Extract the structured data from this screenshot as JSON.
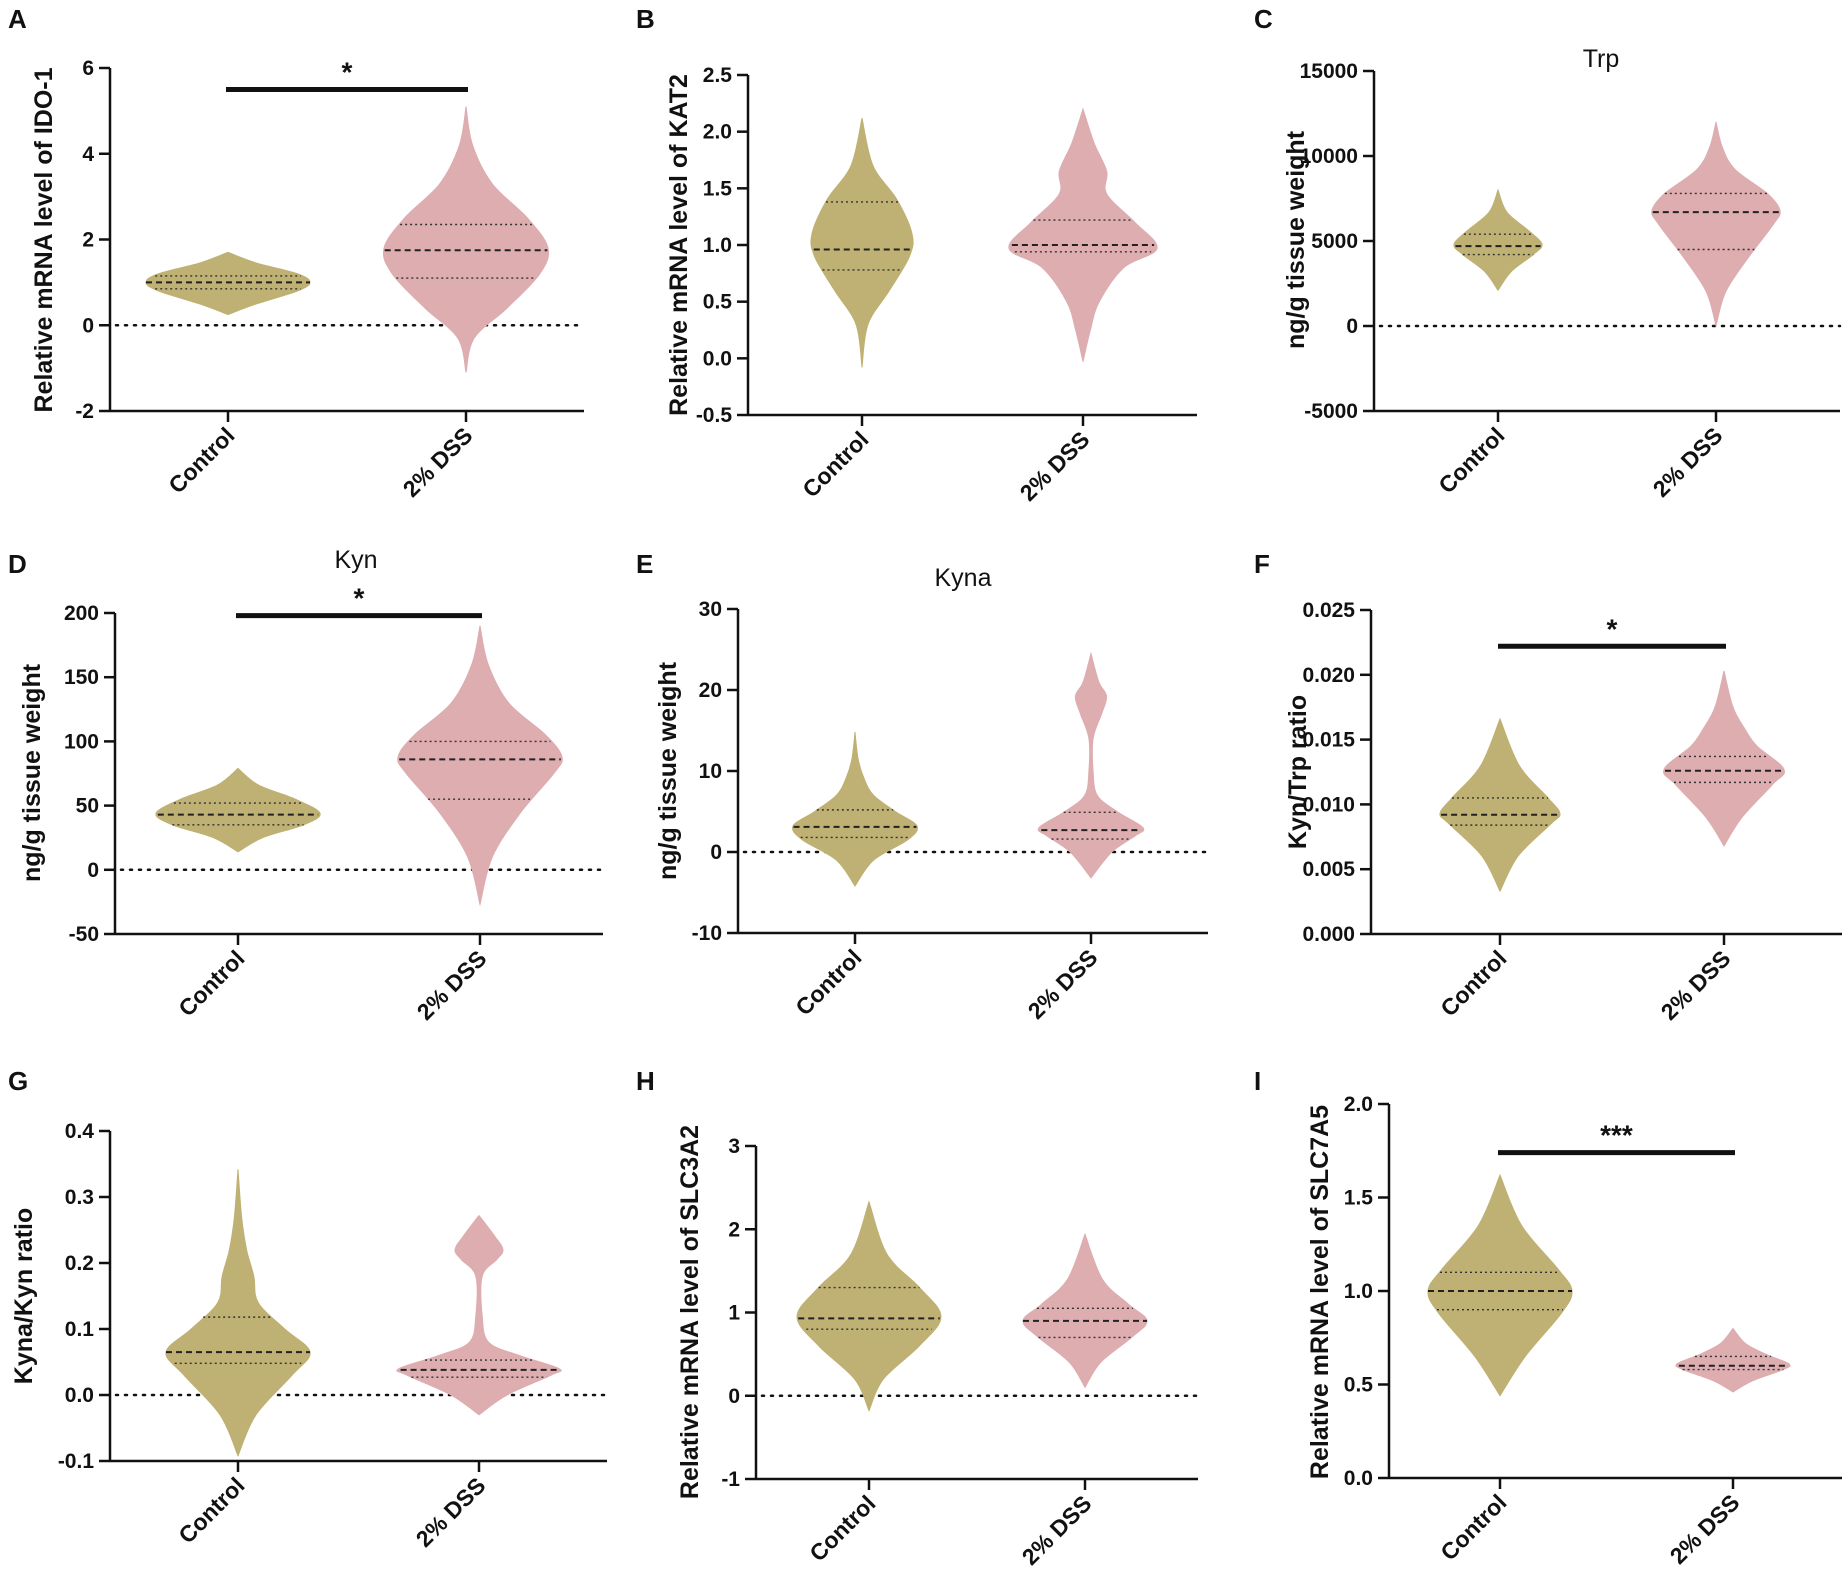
{
  "colors": {
    "control": "#bfb173",
    "dss": "#ddadb0",
    "axis": "#111111"
  },
  "chart_data": [
    {
      "id": "A",
      "panel_label": "A",
      "type": "violin",
      "title": "",
      "ylabel": "Relative mRNA level of IDO-1",
      "ylim": [
        -2,
        6
      ],
      "yticks": [
        -2,
        0,
        2,
        4,
        6
      ],
      "ytick_labels": [
        "-2",
        "0",
        "2",
        "4",
        "6"
      ],
      "zero_line": true,
      "categories": [
        "Control",
        "2% DSS"
      ],
      "groups": [
        {
          "name": "Control",
          "color": "control",
          "min": 0.25,
          "max": 1.7,
          "median": 1.0,
          "q1": 0.85,
          "q3": 1.15,
          "profile": [
            [
              0.25,
              0
            ],
            [
              0.5,
              0.35
            ],
            [
              0.8,
              0.85
            ],
            [
              1.0,
              1.0
            ],
            [
              1.2,
              0.85
            ],
            [
              1.45,
              0.35
            ],
            [
              1.7,
              0
            ]
          ]
        },
        {
          "name": "2% DSS",
          "color": "dss",
          "min": -1.1,
          "max": 5.1,
          "median": 1.75,
          "q1": 1.1,
          "q3": 2.35,
          "profile": [
            [
              -1.1,
              0
            ],
            [
              -0.3,
              0.1
            ],
            [
              0.4,
              0.5
            ],
            [
              1.2,
              0.9
            ],
            [
              1.8,
              1.0
            ],
            [
              2.5,
              0.75
            ],
            [
              3.3,
              0.32
            ],
            [
              4.2,
              0.08
            ],
            [
              5.1,
              0
            ]
          ]
        }
      ],
      "significance": {
        "label": "*",
        "y": 5.5
      }
    },
    {
      "id": "B",
      "panel_label": "B",
      "type": "violin",
      "title": "",
      "ylabel": "Relative mRNA level of KAT2",
      "ylim": [
        -0.5,
        2.5
      ],
      "yticks": [
        -0.5,
        0.0,
        0.5,
        1.0,
        1.5,
        2.0,
        2.5
      ],
      "ytick_labels": [
        "-0.5",
        "0.0",
        "0.5",
        "1.0",
        "1.5",
        "2.0",
        "2.5"
      ],
      "zero_line": false,
      "categories": [
        "Control",
        "2% DSS"
      ],
      "groups": [
        {
          "name": "Control",
          "color": "control",
          "min": -0.08,
          "max": 2.12,
          "median": 0.96,
          "q1": 0.78,
          "q3": 1.38,
          "profile": [
            [
              -0.08,
              0
            ],
            [
              0.3,
              0.12
            ],
            [
              0.6,
              0.55
            ],
            [
              0.9,
              0.95
            ],
            [
              1.1,
              1.0
            ],
            [
              1.4,
              0.7
            ],
            [
              1.7,
              0.22
            ],
            [
              2.12,
              0
            ]
          ]
        },
        {
          "name": "2% DSS",
          "color": "dss",
          "min": -0.03,
          "max": 2.2,
          "median": 1.0,
          "q1": 0.94,
          "q3": 1.22,
          "profile": [
            [
              -0.03,
              0
            ],
            [
              0.25,
              0.1
            ],
            [
              0.5,
              0.22
            ],
            [
              0.8,
              0.55
            ],
            [
              0.97,
              1.0
            ],
            [
              1.2,
              0.7
            ],
            [
              1.45,
              0.32
            ],
            [
              1.65,
              0.32
            ],
            [
              1.9,
              0.15
            ],
            [
              2.2,
              0
            ]
          ]
        }
      ],
      "significance": null
    },
    {
      "id": "C",
      "panel_label": "C",
      "type": "violin",
      "title": "Trp",
      "ylabel": "ng/g tissue weight",
      "ylim": [
        -5000,
        15000
      ],
      "yticks": [
        -5000,
        0,
        5000,
        10000,
        15000
      ],
      "ytick_labels": [
        "-5000",
        "0",
        "5000",
        "10000",
        "15000"
      ],
      "zero_line": true,
      "categories": [
        "Control",
        "2% DSS"
      ],
      "groups": [
        {
          "name": "Control",
          "color": "control",
          "min": 2100,
          "max": 8000,
          "median": 4700,
          "q1": 4200,
          "q3": 5400,
          "profile": [
            [
              2100,
              0
            ],
            [
              3200,
              0.3
            ],
            [
              4200,
              0.8
            ],
            [
              4800,
              1.0
            ],
            [
              5600,
              0.7
            ],
            [
              6700,
              0.2
            ],
            [
              8000,
              0
            ]
          ]
        },
        {
          "name": "2% DSS",
          "color": "dss",
          "min": 0,
          "max": 12000,
          "median": 6700,
          "q1": 4500,
          "q3": 7800,
          "profile": [
            [
              0,
              0
            ],
            [
              2000,
              0.15
            ],
            [
              4000,
              0.5
            ],
            [
              6000,
              0.9
            ],
            [
              6800,
              1.0
            ],
            [
              7800,
              0.8
            ],
            [
              9200,
              0.3
            ],
            [
              10500,
              0.1
            ],
            [
              12000,
              0
            ]
          ]
        }
      ],
      "significance": null
    },
    {
      "id": "D",
      "panel_label": "D",
      "type": "violin",
      "title": "Kyn",
      "ylabel": "ng/g tissue weight",
      "ylim": [
        -50,
        200
      ],
      "yticks": [
        -50,
        0,
        50,
        100,
        150,
        200
      ],
      "ytick_labels": [
        "-50",
        "0",
        "50",
        "100",
        "150",
        "200"
      ],
      "zero_line": true,
      "categories": [
        "Control",
        "2% DSS"
      ],
      "groups": [
        {
          "name": "Control",
          "color": "control",
          "min": 14,
          "max": 79,
          "median": 43,
          "q1": 35,
          "q3": 52,
          "profile": [
            [
              14,
              0
            ],
            [
              25,
              0.3
            ],
            [
              35,
              0.8
            ],
            [
              44,
              1.0
            ],
            [
              55,
              0.7
            ],
            [
              66,
              0.25
            ],
            [
              79,
              0
            ]
          ]
        },
        {
          "name": "2% DSS",
          "color": "dss",
          "min": -27,
          "max": 190,
          "median": 86,
          "q1": 55,
          "q3": 100,
          "profile": [
            [
              -27,
              0
            ],
            [
              10,
              0.15
            ],
            [
              45,
              0.5
            ],
            [
              75,
              0.9
            ],
            [
              88,
              1.0
            ],
            [
              105,
              0.8
            ],
            [
              130,
              0.35
            ],
            [
              160,
              0.1
            ],
            [
              190,
              0
            ]
          ]
        }
      ],
      "significance": {
        "label": "*",
        "y": 198
      }
    },
    {
      "id": "E",
      "panel_label": "E",
      "type": "violin",
      "title": "Kyna",
      "ylabel": "ng/g tissue weight",
      "ylim": [
        -10,
        30
      ],
      "yticks": [
        -10,
        0,
        10,
        20,
        30
      ],
      "ytick_labels": [
        "-10",
        "0",
        "10",
        "20",
        "30"
      ],
      "zero_line": true,
      "categories": [
        "Control",
        "2% DSS"
      ],
      "groups": [
        {
          "name": "Control",
          "color": "control",
          "min": -4.2,
          "max": 14.8,
          "median": 3.1,
          "q1": 1.8,
          "q3": 5.2,
          "profile": [
            [
              -4.2,
              0
            ],
            [
              -1,
              0.3
            ],
            [
              1.5,
              0.85
            ],
            [
              3.2,
              1.0
            ],
            [
              5,
              0.65
            ],
            [
              7,
              0.3
            ],
            [
              9,
              0.15
            ],
            [
              11.5,
              0.05
            ],
            [
              14.8,
              0
            ]
          ]
        },
        {
          "name": "2% DSS",
          "color": "dss",
          "min": -3.2,
          "max": 24.5,
          "median": 2.7,
          "q1": 1.6,
          "q3": 4.9,
          "profile": [
            [
              -3.2,
              0
            ],
            [
              0,
              0.4
            ],
            [
              2,
              0.85
            ],
            [
              3,
              1.0
            ],
            [
              5,
              0.5
            ],
            [
              7,
              0.12
            ],
            [
              10,
              0.04
            ],
            [
              14,
              0.04
            ],
            [
              17,
              0.2
            ],
            [
              19.2,
              0.3
            ],
            [
              21,
              0.15
            ],
            [
              24.5,
              0
            ]
          ]
        }
      ],
      "significance": null
    },
    {
      "id": "F",
      "panel_label": "F",
      "type": "violin",
      "title": "",
      "ylabel": "Kyn/Trp ratio",
      "ylim": [
        0.0,
        0.025
      ],
      "yticks": [
        0.0,
        0.005,
        0.01,
        0.015,
        0.02,
        0.025
      ],
      "ytick_labels": [
        "0.000",
        "0.005",
        "0.010",
        "0.015",
        "0.020",
        "0.025"
      ],
      "zero_line": false,
      "categories": [
        "Control",
        "2% DSS"
      ],
      "groups": [
        {
          "name": "Control",
          "color": "control",
          "min": 0.0033,
          "max": 0.0166,
          "median": 0.0092,
          "q1": 0.0084,
          "q3": 0.0105,
          "profile": [
            [
              0.0033,
              0
            ],
            [
              0.006,
              0.3
            ],
            [
              0.0085,
              0.85
            ],
            [
              0.0093,
              1.0
            ],
            [
              0.0105,
              0.8
            ],
            [
              0.013,
              0.32
            ],
            [
              0.0166,
              0
            ]
          ]
        },
        {
          "name": "2% DSS",
          "color": "dss",
          "min": 0.0068,
          "max": 0.0203,
          "median": 0.0126,
          "q1": 0.0117,
          "q3": 0.0137,
          "profile": [
            [
              0.0068,
              0
            ],
            [
              0.009,
              0.3
            ],
            [
              0.0115,
              0.8
            ],
            [
              0.0127,
              1.0
            ],
            [
              0.0145,
              0.55
            ],
            [
              0.0158,
              0.35
            ],
            [
              0.0175,
              0.15
            ],
            [
              0.0203,
              0
            ]
          ]
        }
      ],
      "significance": {
        "label": "*",
        "y": 0.0222
      }
    },
    {
      "id": "G",
      "panel_label": "G",
      "type": "violin",
      "title": "",
      "ylabel": "Kyna/Kyn ratio",
      "ylim": [
        -0.1,
        0.4
      ],
      "yticks": [
        -0.1,
        0.0,
        0.1,
        0.2,
        0.3,
        0.4
      ],
      "ytick_labels": [
        "-0.1",
        "0.0",
        "0.1",
        "0.2",
        "0.3",
        "0.4"
      ],
      "zero_line": true,
      "categories": [
        "Control",
        "2% DSS"
      ],
      "groups": [
        {
          "name": "Control",
          "color": "control",
          "min": -0.092,
          "max": 0.342,
          "median": 0.065,
          "q1": 0.048,
          "q3": 0.118,
          "profile": [
            [
              -0.092,
              0
            ],
            [
              -0.03,
              0.25
            ],
            [
              0.03,
              0.75
            ],
            [
              0.065,
              1.0
            ],
            [
              0.1,
              0.65
            ],
            [
              0.14,
              0.28
            ],
            [
              0.18,
              0.22
            ],
            [
              0.22,
              0.12
            ],
            [
              0.27,
              0.05
            ],
            [
              0.342,
              0
            ]
          ]
        },
        {
          "name": "2% DSS",
          "color": "dss",
          "min": -0.03,
          "max": 0.272,
          "median": 0.038,
          "q1": 0.027,
          "q3": 0.053,
          "profile": [
            [
              -0.03,
              0
            ],
            [
              0.0,
              0.35
            ],
            [
              0.03,
              0.9
            ],
            [
              0.04,
              1.0
            ],
            [
              0.06,
              0.5
            ],
            [
              0.08,
              0.12
            ],
            [
              0.12,
              0.04
            ],
            [
              0.18,
              0.04
            ],
            [
              0.205,
              0.22
            ],
            [
              0.22,
              0.3
            ],
            [
              0.24,
              0.2
            ],
            [
              0.272,
              0
            ]
          ]
        }
      ],
      "significance": null
    },
    {
      "id": "H",
      "panel_label": "H",
      "type": "violin",
      "title": "",
      "ylabel": "Relative mRNA level of SLC3A2",
      "ylim": [
        -1,
        3
      ],
      "yticks": [
        -1,
        0,
        1,
        2,
        3
      ],
      "ytick_labels": [
        "-1",
        "0",
        "1",
        "2",
        "3"
      ],
      "zero_line": true,
      "categories": [
        "Control",
        "2% DSS"
      ],
      "groups": [
        {
          "name": "Control",
          "color": "control",
          "min": -0.18,
          "max": 2.33,
          "median": 0.93,
          "q1": 0.8,
          "q3": 1.3,
          "profile": [
            [
              -0.18,
              0
            ],
            [
              0.2,
              0.2
            ],
            [
              0.6,
              0.7
            ],
            [
              0.95,
              1.0
            ],
            [
              1.3,
              0.7
            ],
            [
              1.7,
              0.25
            ],
            [
              2.33,
              0
            ]
          ]
        },
        {
          "name": "2% DSS",
          "color": "dss",
          "min": 0.1,
          "max": 1.94,
          "median": 0.9,
          "q1": 0.7,
          "q3": 1.05,
          "profile": [
            [
              0.1,
              0
            ],
            [
              0.4,
              0.25
            ],
            [
              0.7,
              0.75
            ],
            [
              0.9,
              1.0
            ],
            [
              1.1,
              0.7
            ],
            [
              1.4,
              0.28
            ],
            [
              1.94,
              0
            ]
          ]
        }
      ],
      "significance": null
    },
    {
      "id": "I",
      "panel_label": "I",
      "type": "violin",
      "title": "",
      "ylabel": "Relative mRNA level of SLC7A5",
      "ylim": [
        0.0,
        2.0
      ],
      "yticks": [
        0.0,
        0.5,
        1.0,
        1.5,
        2.0
      ],
      "ytick_labels": [
        "0.0",
        "0.5",
        "1.0",
        "1.5",
        "2.0"
      ],
      "zero_line": false,
      "categories": [
        "Control",
        "2% DSS"
      ],
      "groups": [
        {
          "name": "Control",
          "color": "control",
          "min": 0.44,
          "max": 1.62,
          "median": 1.0,
          "q1": 0.9,
          "q3": 1.1,
          "profile": [
            [
              0.44,
              0
            ],
            [
              0.65,
              0.35
            ],
            [
              0.88,
              0.85
            ],
            [
              1.0,
              1.0
            ],
            [
              1.12,
              0.8
            ],
            [
              1.35,
              0.3
            ],
            [
              1.62,
              0
            ]
          ]
        },
        {
          "name": "2% DSS",
          "color": "dss",
          "min": 0.46,
          "max": 0.8,
          "median": 0.6,
          "q1": 0.58,
          "q3": 0.65,
          "profile": [
            [
              0.46,
              0
            ],
            [
              0.52,
              0.35
            ],
            [
              0.58,
              0.9
            ],
            [
              0.61,
              1.0
            ],
            [
              0.66,
              0.6
            ],
            [
              0.72,
              0.22
            ],
            [
              0.8,
              0
            ]
          ]
        }
      ],
      "significance": {
        "label": "***",
        "y": 1.74
      }
    }
  ]
}
